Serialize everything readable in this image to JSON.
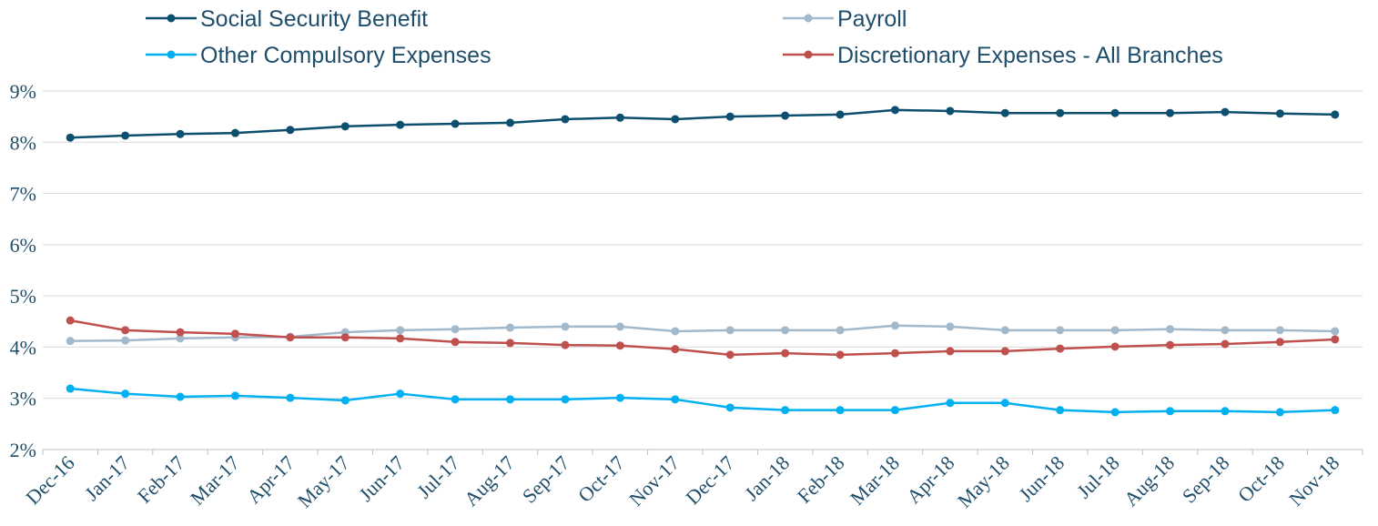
{
  "chart_data": {
    "type": "line",
    "categories": [
      "Dec-16",
      "Jan-17",
      "Feb-17",
      "Mar-17",
      "Apr-17",
      "May-17",
      "Jun-17",
      "Jul-17",
      "Aug-17",
      "Sep-17",
      "Oct-17",
      "Nov-17",
      "Dec-17",
      "Jan-18",
      "Feb-18",
      "Mar-18",
      "Apr-18",
      "May-18",
      "Jun-18",
      "Jul-18",
      "Aug-18",
      "Sep-18",
      "Oct-18",
      "Nov-18"
    ],
    "series": [
      {
        "name": "Social Security Benefit",
        "color": "#0d4f6e",
        "values": [
          8.09,
          8.13,
          8.16,
          8.18,
          8.24,
          8.31,
          8.34,
          8.36,
          8.38,
          8.45,
          8.48,
          8.45,
          8.5,
          8.52,
          8.54,
          8.63,
          8.61,
          8.57,
          8.57,
          8.57,
          8.57,
          8.59,
          8.56,
          8.54
        ]
      },
      {
        "name": "Payroll",
        "color": "#a2b9cc",
        "values": [
          4.12,
          4.13,
          4.17,
          4.19,
          4.2,
          4.29,
          4.33,
          4.35,
          4.38,
          4.4,
          4.4,
          4.31,
          4.33,
          4.33,
          4.33,
          4.42,
          4.4,
          4.33,
          4.33,
          4.33,
          4.35,
          4.33,
          4.33,
          4.31
        ]
      },
      {
        "name": "Other Compulsory Expenses",
        "color": "#00b0f0",
        "values": [
          3.19,
          3.09,
          3.03,
          3.05,
          3.01,
          2.96,
          3.09,
          2.98,
          2.98,
          2.98,
          3.01,
          2.98,
          2.82,
          2.77,
          2.77,
          2.77,
          2.91,
          2.91,
          2.77,
          2.73,
          2.75,
          2.75,
          2.73,
          2.77
        ]
      },
      {
        "name": "Discretionary Expenses - All Branches",
        "color": "#c0504d",
        "values": [
          4.52,
          4.33,
          4.29,
          4.26,
          4.19,
          4.19,
          4.17,
          4.1,
          4.08,
          4.04,
          4.03,
          3.96,
          3.85,
          3.88,
          3.85,
          3.88,
          3.92,
          3.92,
          3.97,
          4.01,
          4.04,
          4.06,
          4.1,
          4.15
        ]
      }
    ],
    "ylim": [
      2,
      9
    ],
    "yticks": [
      {
        "value": 2,
        "label": "2%"
      },
      {
        "value": 3,
        "label": "3%"
      },
      {
        "value": 4,
        "label": "4%"
      },
      {
        "value": 5,
        "label": "5%"
      },
      {
        "value": 6,
        "label": "6%"
      },
      {
        "value": 7,
        "label": "7%"
      },
      {
        "value": 8,
        "label": "8%"
      },
      {
        "value": 9,
        "label": "9%"
      }
    ],
    "grid": true,
    "legend": "top"
  }
}
